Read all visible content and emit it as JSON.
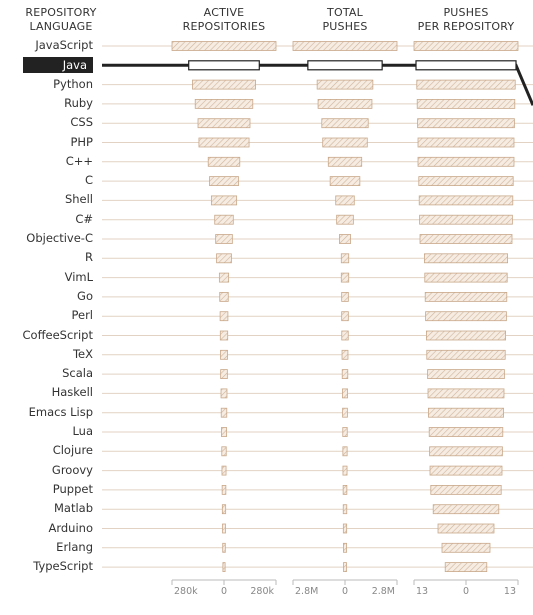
{
  "headers": {
    "language": [
      "REPOSITORY",
      "LANGUAGE"
    ],
    "active": [
      "ACTIVE",
      "REPOSITORIES"
    ],
    "pushes": [
      "TOTAL",
      "PUSHES"
    ],
    "per_repo": [
      "PUSHES",
      "PER REPOSITORY"
    ]
  },
  "selected_language": "Java",
  "colors": {
    "bar_fill": "#f3e7dc",
    "bar_stroke": "#c9a88a",
    "link": "#e2d2c3",
    "highlight": "#222222"
  },
  "chart_data": {
    "type": "bar",
    "layout": "diverging-slopegraph",
    "categories": [
      "JavaScript",
      "Java",
      "Python",
      "Ruby",
      "CSS",
      "PHP",
      "C++",
      "C",
      "Shell",
      "C#",
      "Objective-C",
      "R",
      "VimL",
      "Go",
      "Perl",
      "CoffeeScript",
      "TeX",
      "Scala",
      "Haskell",
      "Emacs Lisp",
      "Lua",
      "Clojure",
      "Groovy",
      "Puppet",
      "Matlab",
      "Arduino",
      "Erlang",
      "TypeScript"
    ],
    "series": [
      {
        "name": "ACTIVE REPOSITORIES",
        "values": [
          290000,
          190000,
          170000,
          155000,
          140000,
          135000,
          85000,
          78000,
          68000,
          50000,
          45000,
          40000,
          25000,
          23000,
          21000,
          20000,
          19000,
          18000,
          16000,
          15000,
          14000,
          12000,
          11000,
          10000,
          9000,
          8000,
          7000,
          6000
        ],
        "axis_ticks": [
          "280k",
          "0",
          "280k"
        ]
      },
      {
        "name": "TOTAL PUSHES",
        "values": [
          3000000,
          2000000,
          1500000,
          1450000,
          1250000,
          1200000,
          900000,
          800000,
          500000,
          450000,
          300000,
          200000,
          200000,
          180000,
          180000,
          175000,
          160000,
          150000,
          140000,
          130000,
          120000,
          115000,
          110000,
          100000,
          95000,
          90000,
          85000,
          80000
        ],
        "axis_ticks": [
          "2.8M",
          "0",
          "2.8M"
        ]
      },
      {
        "name": "PUSHES PER REPOSITORY",
        "values": [
          13,
          12.5,
          12.3,
          12.2,
          12.1,
          12.0,
          12.0,
          11.8,
          11.7,
          11.6,
          11.5,
          10.4,
          10.3,
          10.2,
          10.1,
          9.9,
          9.8,
          9.6,
          9.5,
          9.4,
          9.2,
          9.1,
          9.0,
          8.8,
          8.2,
          7.0,
          6.0,
          5.2
        ],
        "axis_ticks": [
          "13",
          "0",
          "13"
        ]
      }
    ]
  }
}
